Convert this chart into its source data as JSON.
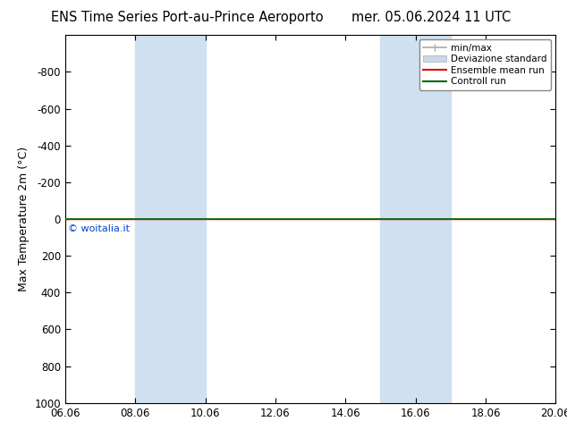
{
  "title_left": "ENS Time Series Port-au-Prince Aeroporto",
  "title_right": "mer. 05.06.2024 11 UTC",
  "ylabel": "Max Temperature 2m (°C)",
  "ylim_bottom": 1000,
  "ylim_top": -1000,
  "yticks": [
    -800,
    -600,
    -400,
    -200,
    0,
    200,
    400,
    600,
    800,
    1000
  ],
  "xtick_labels": [
    "06.06",
    "08.06",
    "10.06",
    "12.06",
    "14.06",
    "16.06",
    "18.06",
    "20.06"
  ],
  "xtick_positions": [
    0,
    2,
    4,
    6,
    8,
    10,
    12,
    14
  ],
  "blue_bands": [
    {
      "start": 2,
      "end": 4
    },
    {
      "start": 9,
      "end": 11
    }
  ],
  "blue_band_color": "#cfe0f0",
  "ensemble_mean_color": "#dd0000",
  "control_run_color": "#006600",
  "minmax_color": "#aaaaaa",
  "std_color": "#c8d8e8",
  "watermark": "© woitalia.it",
  "watermark_color": "#0044cc",
  "background_color": "#ffffff",
  "legend_items": [
    "min/max",
    "Deviazione standard",
    "Ensemble mean run",
    "Controll run"
  ],
  "legend_colors": [
    "#aaaaaa",
    "#c8d8e8",
    "#dd0000",
    "#006600"
  ],
  "title_fontsize": 10.5,
  "axis_fontsize": 9,
  "tick_fontsize": 8.5
}
